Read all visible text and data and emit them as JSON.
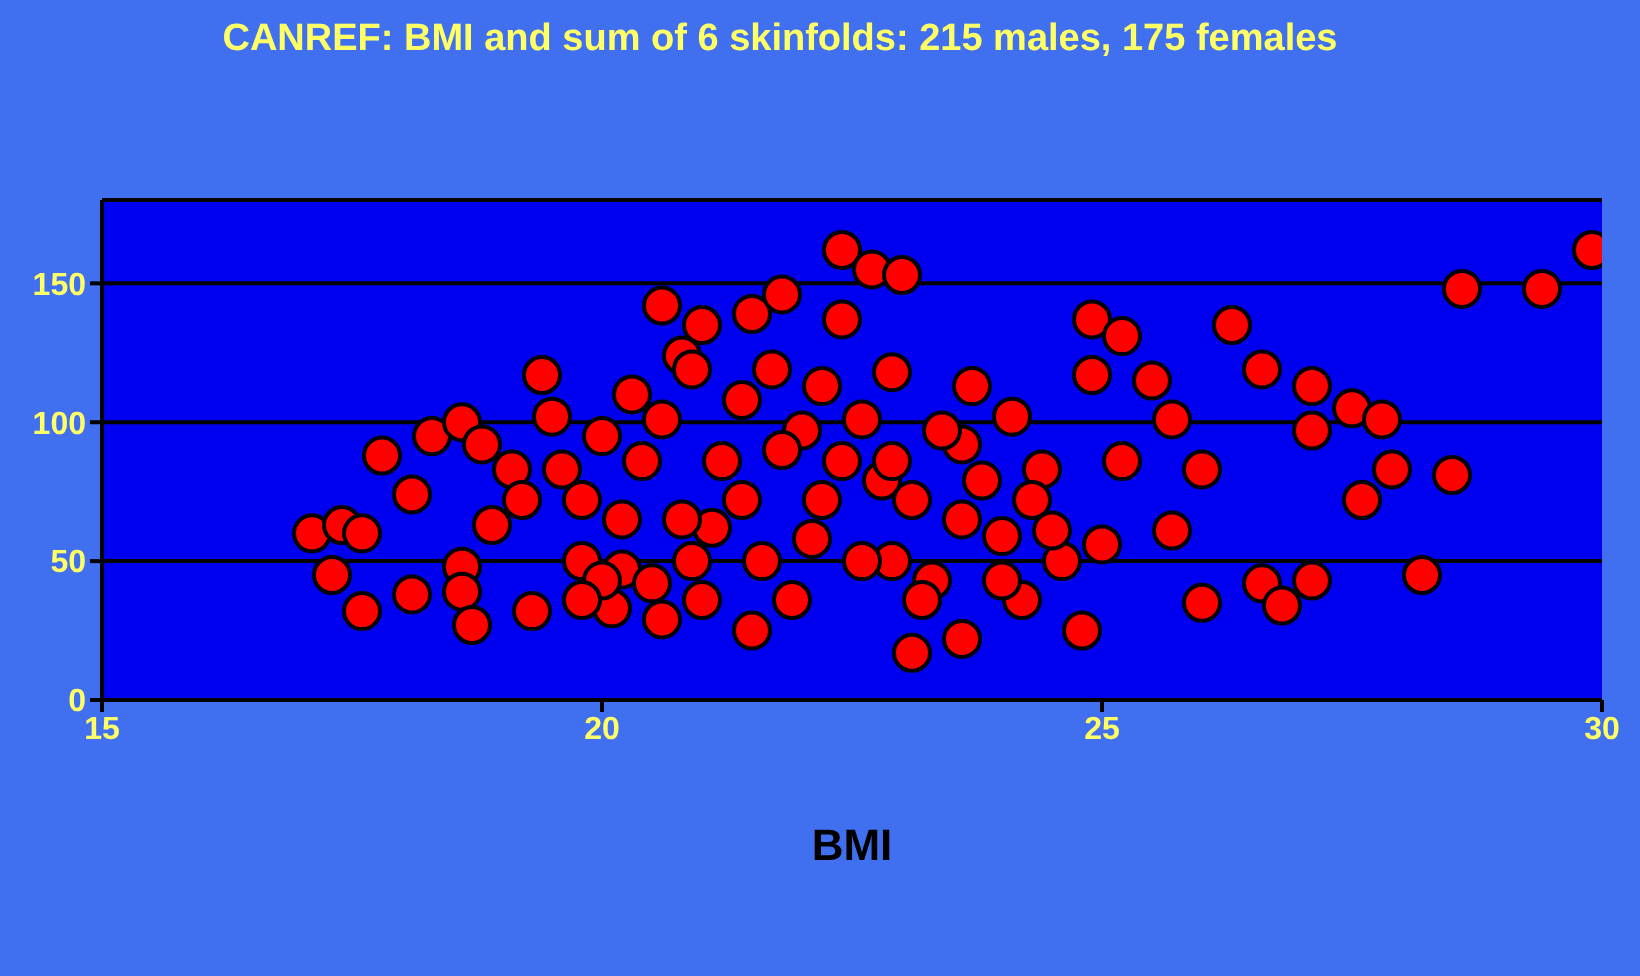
{
  "chart_data": {
    "type": "scatter",
    "title": "CANREF: BMI and sum of 6 skinfolds: 215 males, 175 females",
    "xlabel": "BMI",
    "xlim": [
      15,
      30
    ],
    "xticks": [
      15,
      20,
      25,
      30
    ],
    "ylim": [
      0,
      180
    ],
    "yticks": [
      0,
      50,
      100,
      150
    ],
    "grid": "y",
    "marker": "circle",
    "series": [
      {
        "color": "#ff0000",
        "x": [
          17.1,
          17.3,
          17.4,
          17.6,
          17.6,
          17.8,
          18.1,
          18.1,
          18.3,
          18.6,
          18.6,
          18.6,
          18.7,
          18.8,
          18.9,
          19.1,
          19.3,
          19.4,
          19.5,
          19.8,
          20.0,
          20.1,
          20.2,
          20.3,
          20.5,
          20.6,
          20.8,
          20.9,
          21.0,
          21.1,
          21.4,
          21.5,
          21.7,
          21.8,
          22.0,
          22.2,
          22.4,
          22.4,
          22.7,
          22.9,
          23.0,
          23.1,
          22.9,
          23.3,
          23.6,
          23.7,
          24.0,
          24.1,
          24.2,
          24.4,
          24.6,
          24.8,
          24.9,
          24.9,
          25.0,
          25.2,
          25.2,
          25.5,
          25.7,
          25.7,
          26.0,
          26.0,
          26.3,
          26.6,
          26.6,
          26.8,
          27.1,
          27.1,
          27.1,
          27.5,
          27.6,
          27.8,
          27.9,
          28.2,
          28.5,
          28.6,
          29.4,
          29.9,
          19.2,
          19.8,
          20.4,
          20.8,
          21.0,
          21.2,
          21.6,
          21.9,
          22.2,
          22.4,
          22.6,
          22.8,
          23.1,
          23.2,
          23.4,
          23.6,
          23.8,
          24.0,
          24.3,
          24.5,
          20.2,
          20.6,
          20.0,
          19.6,
          21.4,
          21.8,
          22.1,
          22.6,
          22.9,
          20.6,
          21.5,
          23.6,
          19.8,
          20.9
        ],
        "values": [
          60,
          45,
          63,
          60,
          32,
          88,
          38,
          74,
          95,
          100,
          48,
          39,
          27,
          92,
          63,
          83,
          32,
          117,
          102,
          72,
          95,
          33,
          47,
          110,
          42,
          142,
          124,
          119,
          135,
          62,
          72,
          139,
          119,
          146,
          97,
          113,
          162,
          137,
          155,
          118,
          153,
          17,
          50,
          43,
          92,
          113,
          59,
          102,
          36,
          83,
          50,
          25,
          137,
          117,
          56,
          86,
          131,
          115,
          101,
          61,
          83,
          35,
          135,
          119,
          42,
          34,
          113,
          97,
          43,
          105,
          72,
          101,
          83,
          45,
          81,
          148,
          148,
          162,
          72,
          50,
          86,
          65,
          36,
          86,
          50,
          36,
          72,
          86,
          50,
          79,
          72,
          36,
          97,
          65,
          79,
          43,
          72,
          61,
          65,
          101,
          43,
          83,
          108,
          90,
          58,
          101,
          86,
          29,
          25,
          22,
          36,
          50
        ]
      }
    ]
  }
}
